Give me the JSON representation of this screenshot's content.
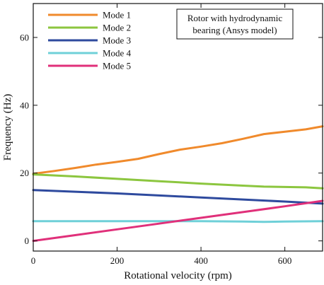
{
  "chart_data": {
    "type": "line",
    "title": "",
    "xlabel": "Rotational velocity (rpm)",
    "ylabel": "Frequency (Hz)",
    "xlim": [
      0,
      690
    ],
    "ylim": [
      -3,
      70
    ],
    "xticks": [
      0,
      200,
      400,
      600
    ],
    "yticks": [
      0,
      20,
      40,
      60
    ],
    "grid": false,
    "legend_position": "top-left",
    "annotation_lines": [
      "Rotor with hydrodynamic",
      "bearing (Ansys model)"
    ],
    "series": [
      {
        "name": "Mode 1",
        "color": "#f08a2c",
        "x": [
          0,
          50,
          100,
          150,
          200,
          250,
          300,
          350,
          400,
          450,
          500,
          550,
          600,
          650,
          690
        ],
        "y": [
          19.8,
          20.6,
          21.5,
          22.5,
          23.3,
          24.2,
          25.6,
          26.9,
          27.8,
          28.8,
          30.1,
          31.5,
          32.2,
          32.9,
          33.8
        ]
      },
      {
        "name": "Mode 2",
        "color": "#8cc63f",
        "x": [
          0,
          100,
          200,
          300,
          400,
          500,
          550,
          600,
          650,
          690
        ],
        "y": [
          19.6,
          19.0,
          18.3,
          17.6,
          16.9,
          16.3,
          16.0,
          15.9,
          15.8,
          15.5
        ]
      },
      {
        "name": "Mode 3",
        "color": "#2e4a9e",
        "x": [
          0,
          100,
          200,
          300,
          400,
          500,
          600,
          690
        ],
        "y": [
          15.0,
          14.5,
          14.0,
          13.4,
          12.8,
          12.2,
          11.6,
          11.0
        ]
      },
      {
        "name": "Mode 4",
        "color": "#6fd0d8",
        "x": [
          0,
          100,
          200,
          300,
          400,
          500,
          550,
          600,
          690
        ],
        "y": [
          5.8,
          5.8,
          5.8,
          5.8,
          5.8,
          5.7,
          5.6,
          5.7,
          5.8
        ]
      },
      {
        "name": "Mode 5",
        "color": "#e0307a",
        "x": [
          0,
          100,
          200,
          300,
          400,
          500,
          600,
          690
        ],
        "y": [
          0.0,
          1.7,
          3.4,
          5.1,
          6.8,
          8.5,
          10.2,
          11.8
        ]
      }
    ]
  }
}
